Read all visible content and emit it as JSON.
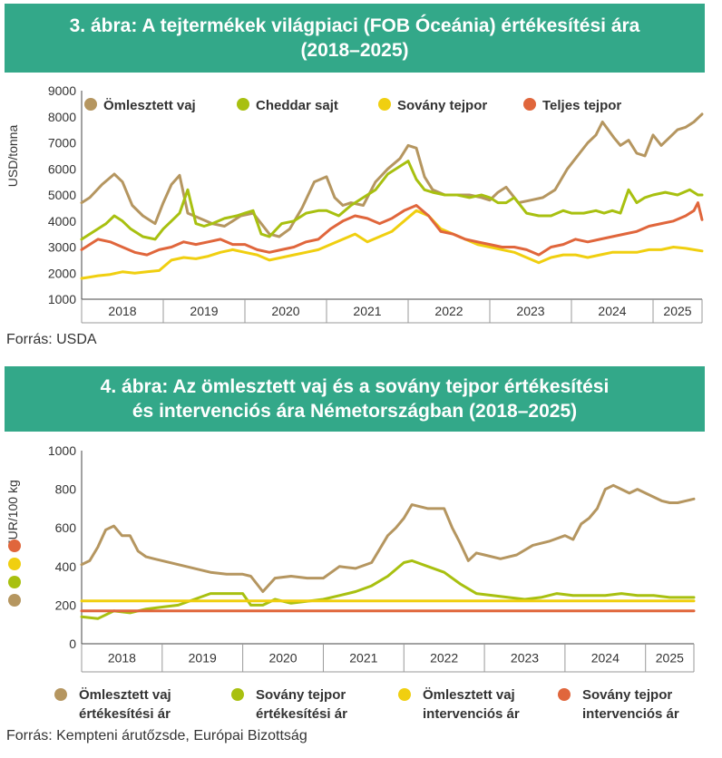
{
  "colors": {
    "header_bg": "#33a889",
    "butter": "#b59660",
    "cheddar": "#a8c010",
    "smp": "#f0cf10",
    "wmp": "#e0663c"
  },
  "chart_data": [
    {
      "type": "line",
      "title_line1": "3. ábra: A tejtermékek világpiaci (FOB Óceánia) értékesítési ára",
      "title_line2": "(2018–2025)",
      "ylabel": "USD/tonna",
      "ylim": [
        1000,
        9000
      ],
      "yticks": [
        "1000",
        "2000",
        "3000",
        "4000",
        "5000",
        "6000",
        "7000",
        "8000",
        "9000"
      ],
      "years": [
        "2018",
        "2019",
        "2020",
        "2021",
        "2022",
        "2023",
        "2024",
        "2025"
      ],
      "x_range": [
        2018.0,
        2025.6
      ],
      "source": "Forrás: USDA",
      "series": [
        {
          "name": "Ömlesztett vaj",
          "color": "#b59660",
          "x": [
            2018.0,
            2018.1,
            2018.25,
            2018.4,
            2018.5,
            2018.62,
            2018.75,
            2018.9,
            2019.0,
            2019.1,
            2019.2,
            2019.3,
            2019.45,
            2019.6,
            2019.75,
            2019.85,
            2019.95,
            2020.1,
            2020.2,
            2020.3,
            2020.42,
            2020.55,
            2020.7,
            2020.85,
            2021.0,
            2021.1,
            2021.2,
            2021.3,
            2021.45,
            2021.6,
            2021.75,
            2021.9,
            2022.0,
            2022.1,
            2022.2,
            2022.3,
            2022.45,
            2022.6,
            2022.75,
            2022.9,
            2023.0,
            2023.1,
            2023.2,
            2023.35,
            2023.5,
            2023.65,
            2023.8,
            2023.95,
            2024.1,
            2024.2,
            2024.3,
            2024.38,
            2024.45,
            2024.52,
            2024.6,
            2024.7,
            2024.8,
            2024.9,
            2025.0,
            2025.1,
            2025.2,
            2025.3,
            2025.4,
            2025.5,
            2025.6
          ],
          "values": [
            4700,
            4900,
            5400,
            5800,
            5500,
            4600,
            4200,
            3900,
            4700,
            5400,
            5750,
            4300,
            4100,
            3900,
            3800,
            4000,
            4200,
            4300,
            3900,
            3500,
            3400,
            3700,
            4500,
            5500,
            5700,
            4900,
            4600,
            4700,
            4600,
            5500,
            6000,
            6400,
            6900,
            6800,
            5700,
            5200,
            5000,
            5000,
            5000,
            4900,
            4800,
            5100,
            5300,
            4700,
            4800,
            4900,
            5200,
            6000,
            6600,
            7000,
            7300,
            7800,
            7500,
            7200,
            6900,
            7100,
            6600,
            6500,
            7300,
            6900,
            7200,
            7500,
            7600,
            7800,
            8100
          ]
        },
        {
          "name": "Cheddar sajt",
          "color": "#a8c010",
          "x": [
            2018.0,
            2018.1,
            2018.2,
            2018.3,
            2018.4,
            2018.5,
            2018.6,
            2018.75,
            2018.9,
            2019.0,
            2019.1,
            2019.2,
            2019.3,
            2019.4,
            2019.5,
            2019.6,
            2019.75,
            2019.9,
            2020.0,
            2020.1,
            2020.2,
            2020.3,
            2020.45,
            2020.6,
            2020.75,
            2020.9,
            2021.0,
            2021.15,
            2021.3,
            2021.45,
            2021.6,
            2021.75,
            2021.9,
            2022.0,
            2022.1,
            2022.2,
            2022.3,
            2022.45,
            2022.6,
            2022.75,
            2022.9,
            2023.0,
            2023.1,
            2023.2,
            2023.3,
            2023.45,
            2023.6,
            2023.75,
            2023.9,
            2024.0,
            2024.15,
            2024.3,
            2024.4,
            2024.5,
            2024.6,
            2024.7,
            2024.8,
            2024.9,
            2025.0,
            2025.15,
            2025.3,
            2025.45,
            2025.55,
            2025.6
          ],
          "values": [
            3300,
            3500,
            3700,
            3900,
            4200,
            4000,
            3700,
            3400,
            3300,
            3700,
            4000,
            4300,
            5200,
            3900,
            3800,
            3900,
            4100,
            4200,
            4300,
            4400,
            3500,
            3400,
            3900,
            4000,
            4300,
            4400,
            4400,
            4200,
            4600,
            4900,
            5200,
            5800,
            6100,
            6300,
            5600,
            5200,
            5100,
            5000,
            5000,
            4900,
            5000,
            4900,
            4700,
            4700,
            4900,
            4300,
            4200,
            4200,
            4400,
            4300,
            4300,
            4400,
            4300,
            4400,
            4300,
            5200,
            4700,
            4900,
            5000,
            5100,
            5000,
            5200,
            5000,
            5000
          ]
        },
        {
          "name": "Sovány tejpor",
          "color": "#f0cf10",
          "x": [
            2018.0,
            2018.1,
            2018.2,
            2018.35,
            2018.5,
            2018.65,
            2018.8,
            2018.95,
            2019.1,
            2019.25,
            2019.4,
            2019.55,
            2019.7,
            2019.85,
            2020.0,
            2020.15,
            2020.3,
            2020.45,
            2020.6,
            2020.75,
            2020.9,
            2021.05,
            2021.2,
            2021.35,
            2021.5,
            2021.65,
            2021.8,
            2021.95,
            2022.1,
            2022.25,
            2022.4,
            2022.55,
            2022.7,
            2022.85,
            2023.0,
            2023.15,
            2023.3,
            2023.45,
            2023.6,
            2023.75,
            2023.9,
            2024.05,
            2024.2,
            2024.35,
            2024.5,
            2024.65,
            2024.8,
            2024.95,
            2025.1,
            2025.25,
            2025.4,
            2025.5,
            2025.6
          ],
          "values": [
            1800,
            1850,
            1900,
            1950,
            2050,
            2000,
            2050,
            2100,
            2500,
            2600,
            2550,
            2650,
            2800,
            2900,
            2800,
            2700,
            2500,
            2600,
            2700,
            2800,
            2900,
            3100,
            3300,
            3500,
            3200,
            3400,
            3600,
            4000,
            4400,
            4200,
            3700,
            3500,
            3300,
            3100,
            3000,
            2900,
            2800,
            2600,
            2400,
            2600,
            2700,
            2700,
            2600,
            2700,
            2800,
            2800,
            2800,
            2900,
            2900,
            3000,
            2950,
            2900,
            2850
          ]
        },
        {
          "name": "Teljes tejpor",
          "color": "#e0663c",
          "x": [
            2018.0,
            2018.1,
            2018.2,
            2018.35,
            2018.5,
            2018.65,
            2018.8,
            2018.95,
            2019.1,
            2019.25,
            2019.4,
            2019.55,
            2019.7,
            2019.85,
            2020.0,
            2020.15,
            2020.3,
            2020.45,
            2020.6,
            2020.75,
            2020.9,
            2021.05,
            2021.2,
            2021.35,
            2021.5,
            2021.65,
            2021.8,
            2021.95,
            2022.1,
            2022.25,
            2022.4,
            2022.55,
            2022.7,
            2022.85,
            2023.0,
            2023.15,
            2023.3,
            2023.45,
            2023.6,
            2023.75,
            2023.9,
            2024.05,
            2024.2,
            2024.35,
            2024.5,
            2024.65,
            2024.8,
            2024.95,
            2025.1,
            2025.25,
            2025.4,
            2025.5,
            2025.55,
            2025.6
          ],
          "values": [
            2900,
            3100,
            3300,
            3200,
            3000,
            2800,
            2700,
            2900,
            3000,
            3200,
            3100,
            3200,
            3300,
            3100,
            3100,
            2900,
            2800,
            2900,
            3000,
            3200,
            3300,
            3700,
            4000,
            4200,
            4100,
            3900,
            4100,
            4400,
            4600,
            4200,
            3600,
            3500,
            3300,
            3200,
            3100,
            3000,
            3000,
            2900,
            2700,
            3000,
            3100,
            3300,
            3200,
            3300,
            3400,
            3500,
            3600,
            3800,
            3900,
            4000,
            4200,
            4400,
            4700,
            4050
          ]
        }
      ]
    },
    {
      "type": "line",
      "title_line1": "4. ábra: Az ömlesztett vaj és a sovány tejpor értékesítési",
      "title_line2": "és intervenciós ára Németországban (2018–2025)",
      "ylabel": "EUR/100 kg",
      "ylim": [
        0,
        1000
      ],
      "yticks": [
        "0",
        "200",
        "400",
        "600",
        "800",
        "1000"
      ],
      "years": [
        "2018",
        "2019",
        "2020",
        "2021",
        "2022",
        "2023",
        "2024",
        "2025"
      ],
      "x_range": [
        2018.0,
        2025.6
      ],
      "source": "Forrás: Kempteni árutőzsde, Európai Bizottság",
      "series": [
        {
          "name_line1": "Ömlesztett vaj",
          "name_line2": "értékesítési ár",
          "color": "#b59660",
          "x": [
            2018.0,
            2018.1,
            2018.2,
            2018.3,
            2018.4,
            2018.5,
            2018.6,
            2018.7,
            2018.8,
            2018.9,
            2019.0,
            2019.2,
            2019.4,
            2019.6,
            2019.8,
            2020.0,
            2020.1,
            2020.25,
            2020.4,
            2020.6,
            2020.8,
            2021.0,
            2021.2,
            2021.4,
            2021.6,
            2021.8,
            2021.9,
            2022.0,
            2022.1,
            2022.3,
            2022.5,
            2022.6,
            2022.7,
            2022.8,
            2022.9,
            2023.0,
            2023.2,
            2023.4,
            2023.6,
            2023.8,
            2024.0,
            2024.1,
            2024.2,
            2024.3,
            2024.4,
            2024.5,
            2024.6,
            2024.7,
            2024.8,
            2024.9,
            2025.0,
            2025.1,
            2025.2,
            2025.3,
            2025.4,
            2025.5,
            2025.6
          ],
          "values": [
            410,
            430,
            500,
            590,
            610,
            560,
            560,
            480,
            450,
            440,
            430,
            410,
            390,
            370,
            360,
            360,
            350,
            270,
            340,
            350,
            340,
            340,
            400,
            390,
            420,
            560,
            600,
            650,
            720,
            700,
            700,
            600,
            520,
            430,
            470,
            460,
            440,
            460,
            510,
            530,
            560,
            540,
            620,
            650,
            700,
            800,
            820,
            800,
            780,
            800,
            780,
            760,
            740,
            730,
            730,
            740,
            750
          ]
        },
        {
          "name_line1": "Sovány tejpor",
          "name_line2": "értékesítési ár",
          "color": "#a8c010",
          "x": [
            2018.0,
            2018.2,
            2018.4,
            2018.6,
            2018.8,
            2019.0,
            2019.2,
            2019.4,
            2019.6,
            2019.8,
            2020.0,
            2020.1,
            2020.25,
            2020.4,
            2020.6,
            2020.8,
            2021.0,
            2021.2,
            2021.4,
            2021.6,
            2021.8,
            2022.0,
            2022.1,
            2022.3,
            2022.5,
            2022.7,
            2022.9,
            2023.1,
            2023.3,
            2023.5,
            2023.7,
            2023.9,
            2024.1,
            2024.3,
            2024.5,
            2024.7,
            2024.9,
            2025.1,
            2025.3,
            2025.5,
            2025.6
          ],
          "values": [
            140,
            130,
            170,
            160,
            180,
            190,
            200,
            230,
            260,
            260,
            260,
            200,
            200,
            230,
            210,
            220,
            230,
            250,
            270,
            300,
            350,
            420,
            430,
            400,
            370,
            310,
            260,
            250,
            240,
            230,
            240,
            260,
            250,
            250,
            250,
            260,
            250,
            250,
            240,
            240,
            240
          ]
        },
        {
          "name_line1": "Ömlesztett vaj",
          "name_line2": "intervenciós ár",
          "color": "#f0cf10",
          "x": [
            2018.0,
            2025.6
          ],
          "values": [
            221.75,
            221.75
          ]
        },
        {
          "name_line1": "Sovány tejpor",
          "name_line2": "intervenciós ár",
          "color": "#e0663c",
          "x": [
            2018.0,
            2025.6
          ],
          "values": [
            169.8,
            169.8
          ]
        }
      ]
    }
  ]
}
